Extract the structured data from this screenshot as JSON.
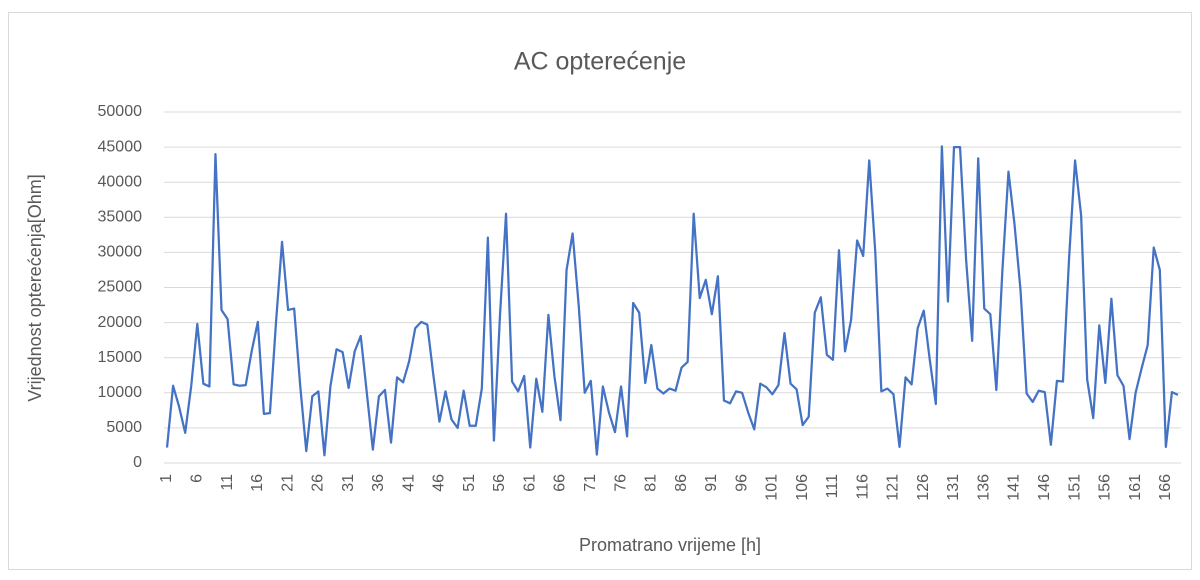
{
  "chart_data": {
    "type": "line",
    "title": "AC opterećenje",
    "x_label": "Promatrano vrijeme [h]",
    "y_label": "Vrijednost opterećenja[Ohm]",
    "categories": [
      "1",
      null,
      null,
      null,
      null,
      "6",
      null,
      null,
      null,
      null,
      "11",
      null,
      null,
      null,
      null,
      "16",
      null,
      null,
      null,
      null,
      "21",
      null,
      null,
      null,
      null,
      "26",
      null,
      null,
      null,
      null,
      "31",
      null,
      null,
      null,
      null,
      "36",
      null,
      null,
      null,
      null,
      "41",
      null,
      null,
      null,
      null,
      "46",
      null,
      null,
      null,
      null,
      "51",
      null,
      null,
      null,
      null,
      "56",
      null,
      null,
      null,
      null,
      "61",
      null,
      null,
      null,
      null,
      "66",
      null,
      null,
      null,
      null,
      "71",
      null,
      null,
      null,
      null,
      "76",
      null,
      null,
      null,
      null,
      "81",
      null,
      null,
      null,
      null,
      "86",
      null,
      null,
      null,
      null,
      "91",
      null,
      null,
      null,
      null,
      "96",
      null,
      null,
      null,
      null,
      "101",
      null,
      null,
      null,
      null,
      "106",
      null,
      null,
      null,
      null,
      "111",
      null,
      null,
      null,
      null,
      "116",
      null,
      null,
      null,
      null,
      "121",
      null,
      null,
      null,
      null,
      "126",
      null,
      null,
      null,
      null,
      "131",
      null,
      null,
      null,
      null,
      "136",
      null,
      null,
      null,
      null,
      "141",
      null,
      null,
      null,
      null,
      "146",
      null,
      null,
      null,
      null,
      "151",
      null,
      null,
      null,
      null,
      "156",
      null,
      null,
      null,
      null,
      "161",
      null,
      null,
      null,
      null,
      "166",
      null,
      null
    ],
    "series": [
      {
        "name": "AC opterećenje",
        "color": "#4472c4",
        "values": [
          2200,
          11000,
          8000,
          4300,
          11000,
          19800,
          11300,
          10900,
          44000,
          21800,
          20500,
          11200,
          11000,
          11100,
          16000,
          20100,
          7000,
          7100,
          20000,
          31500,
          21800,
          22000,
          11000,
          1700,
          9500,
          10200,
          1100,
          11000,
          16200,
          15800,
          10700,
          15900,
          18100,
          10000,
          1900,
          9500,
          10400,
          2900,
          12200,
          11500,
          14500,
          19200,
          20100,
          19700,
          12500,
          5900,
          10200,
          6200,
          5000,
          10300,
          5300,
          5300,
          10600,
          32100,
          3200,
          21000,
          35500,
          11600,
          10200,
          12400,
          2200,
          12000,
          7300,
          21100,
          12300,
          6100,
          27500,
          32700,
          22500,
          10000,
          11700,
          1200,
          10900,
          7200,
          4400,
          10900,
          3800,
          22800,
          21400,
          11400,
          16800,
          10600,
          9900,
          10600,
          10300,
          13600,
          14400,
          35500,
          23500,
          26100,
          21200,
          26600,
          8900,
          8500,
          10200,
          10000,
          7200,
          4800,
          11300,
          10800,
          9800,
          11100,
          18500,
          11300,
          10500,
          5400,
          6600,
          21400,
          23600,
          15400,
          14700,
          30300,
          15900,
          20400,
          31700,
          29500,
          43100,
          30000,
          10200,
          10600,
          9800,
          2300,
          12200,
          11200,
          19200,
          21700,
          14700,
          8400,
          45100,
          23000,
          45000,
          45000,
          29000,
          17400,
          43400,
          22000,
          21200,
          10400,
          27500,
          41500,
          34000,
          24500,
          9900,
          8700,
          10300,
          10100,
          2600,
          11700,
          11600,
          29000,
          43100,
          35300,
          11900,
          6400,
          19600,
          11400,
          23400,
          12500,
          11000,
          3400,
          10000,
          13500,
          16800,
          30700,
          27500,
          2300,
          10100,
          9700
        ]
      }
    ],
    "ylim": [
      0,
      50000
    ],
    "yticks": [
      0,
      5000,
      10000,
      15000,
      20000,
      25000,
      30000,
      35000,
      40000,
      45000,
      50000
    ],
    "grid": true
  }
}
